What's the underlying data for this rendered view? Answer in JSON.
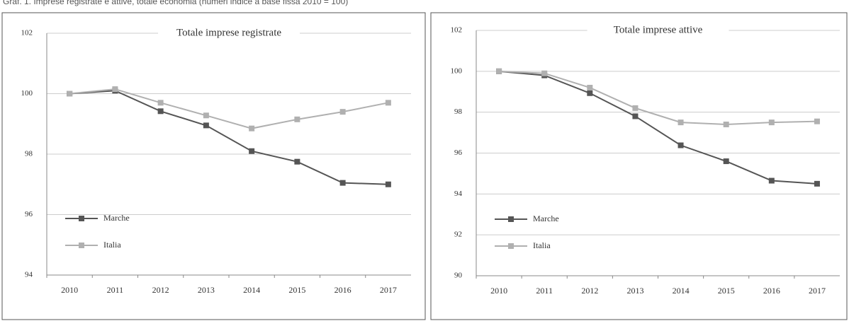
{
  "caption": "Graf. 1. Imprese registrate e attive, totale economia (numeri indice a base fissa 2010 = 100)",
  "chart_data": [
    {
      "type": "line",
      "title": "Totale imprese registrate",
      "categories": [
        "2010",
        "2011",
        "2012",
        "2013",
        "2014",
        "2015",
        "2016",
        "2017"
      ],
      "series": [
        {
          "name": "Marche",
          "color": "#555555",
          "values": [
            100,
            100.1,
            99.42,
            98.95,
            98.1,
            97.75,
            97.05,
            97.0
          ]
        },
        {
          "name": "Italia",
          "color": "#b0b0b0",
          "values": [
            100,
            100.15,
            99.7,
            99.28,
            98.85,
            99.15,
            99.4,
            99.7
          ]
        }
      ],
      "ylim": [
        94,
        102
      ],
      "yticks": [
        94,
        96,
        98,
        100,
        102
      ],
      "grid": true,
      "legend": "lower left"
    },
    {
      "type": "line",
      "title": "Totale imprese attive",
      "categories": [
        "2010",
        "2011",
        "2012",
        "2013",
        "2014",
        "2015",
        "2016",
        "2017"
      ],
      "series": [
        {
          "name": "Marche",
          "color": "#555555",
          "values": [
            100,
            99.8,
            98.93,
            97.8,
            96.38,
            95.6,
            94.65,
            94.5
          ]
        },
        {
          "name": "Italia",
          "color": "#b0b0b0",
          "values": [
            100,
            99.9,
            99.2,
            98.2,
            97.5,
            97.4,
            97.5,
            97.55
          ]
        }
      ],
      "ylim": [
        90,
        102
      ],
      "yticks": [
        90,
        92,
        94,
        96,
        98,
        100,
        102
      ],
      "grid": true,
      "legend": "lower left"
    }
  ]
}
